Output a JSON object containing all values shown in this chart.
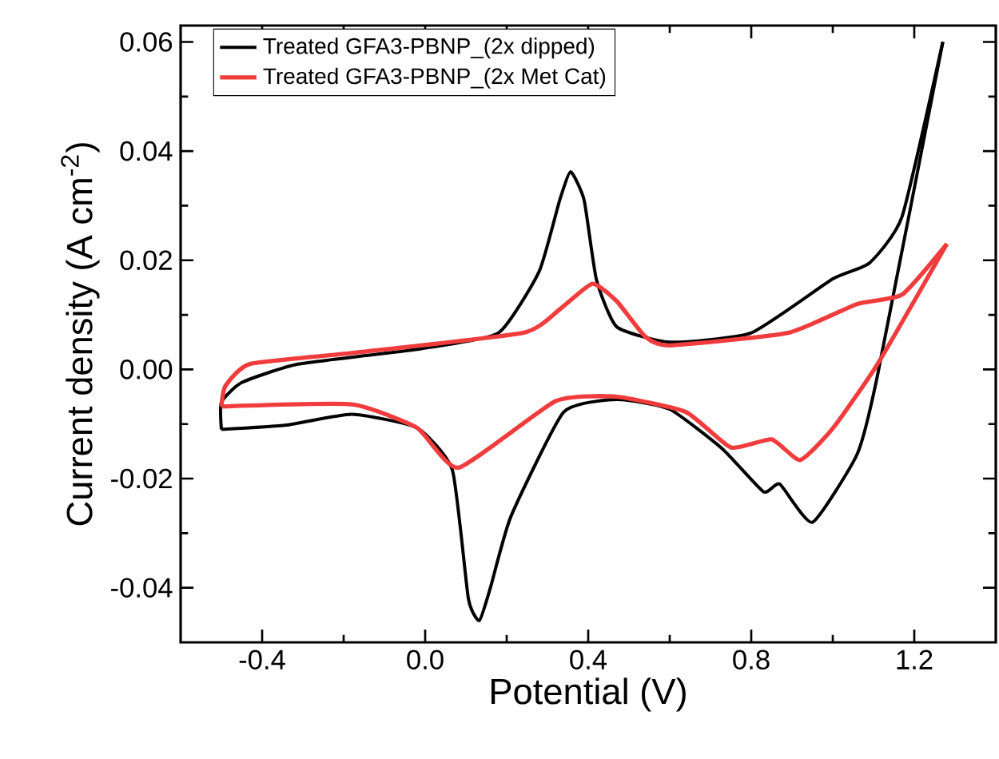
{
  "chart_data": {
    "type": "line",
    "xlabel": "Potential (V)",
    "ylabel": "Current density (A cm$^{-2}$)",
    "xlim": [
      -0.6,
      1.4
    ],
    "ylim": [
      -0.05,
      0.063
    ],
    "xticks": [
      {
        "value": -0.4,
        "label": "-0.4"
      },
      {
        "value": 0.0,
        "label": "0.0"
      },
      {
        "value": 0.4,
        "label": "0.4"
      },
      {
        "value": 0.8,
        "label": "0.8"
      },
      {
        "value": 1.2,
        "label": "1.2"
      }
    ],
    "yticks": [
      {
        "value": -0.04,
        "label": "-0.04"
      },
      {
        "value": -0.02,
        "label": "-0.02"
      },
      {
        "value": 0.0,
        "label": "0.00"
      },
      {
        "value": 0.02,
        "label": "0.02"
      },
      {
        "value": 0.04,
        "label": "0.04"
      },
      {
        "value": 0.06,
        "label": "0.06"
      }
    ],
    "legend": "top left",
    "grid": false,
    "marker": "none",
    "line_style": "solid",
    "series": [
      {
        "name": "Treated GFA3-PBNP_(2x dipped)",
        "color": "#000000",
        "x": [
          -0.5,
          -0.5,
          -0.45,
          -0.31,
          -0.01,
          0.18,
          0.28,
          0.33,
          0.357,
          0.39,
          0.42,
          0.47,
          0.6,
          0.8,
          1.0,
          1.09,
          1.17,
          1.27
        ],
        "values": [
          -0.011,
          -0.006,
          -0.0024,
          0.001,
          0.0038,
          0.0067,
          0.018,
          0.031,
          0.0362,
          0.031,
          0.0165,
          0.0078,
          0.005,
          0.0067,
          0.0166,
          0.0195,
          0.028,
          0.06
        ]
      },
      {
        "color": "#000000",
        "x": [
          -0.5,
          -0.34,
          -0.18,
          -0.02,
          0.067,
          0.106,
          0.133,
          0.16,
          0.21,
          0.34,
          0.47,
          0.6,
          0.73,
          0.83,
          0.87,
          0.95,
          1.06,
          1.11,
          1.27
        ],
        "values": [
          -0.011,
          -0.0102,
          -0.0082,
          -0.0107,
          -0.0185,
          -0.042,
          -0.046,
          -0.04,
          -0.027,
          -0.0078,
          -0.0055,
          -0.0073,
          -0.0146,
          -0.0224,
          -0.021,
          -0.028,
          -0.0155,
          -0.001,
          0.06
        ]
      },
      {
        "name": "Treated GFA3-PBNP_(2x Met Cat)",
        "color": "#f03c3c",
        "x": [
          -0.5,
          -0.49,
          -0.43,
          -0.18,
          0.24,
          0.33,
          0.41,
          0.47,
          0.54,
          0.6,
          0.89,
          1.06,
          1.17,
          1.28
        ],
        "values": [
          -0.0068,
          -0.003,
          0.001,
          0.003,
          0.0067,
          0.011,
          0.0157,
          0.0125,
          0.006,
          0.0044,
          0.0067,
          0.012,
          0.0137,
          0.023
        ]
      },
      {
        "color": "#f03c3c",
        "x": [
          -0.5,
          -0.18,
          -0.02,
          0.082,
          0.32,
          0.47,
          0.64,
          0.75,
          0.85,
          0.92,
          1.0,
          1.11,
          1.28
        ],
        "values": [
          -0.0068,
          -0.0064,
          -0.0107,
          -0.018,
          -0.0058,
          -0.005,
          -0.0078,
          -0.0143,
          -0.0128,
          -0.0166,
          -0.0108,
          0.001,
          0.023
        ]
      }
    ]
  }
}
